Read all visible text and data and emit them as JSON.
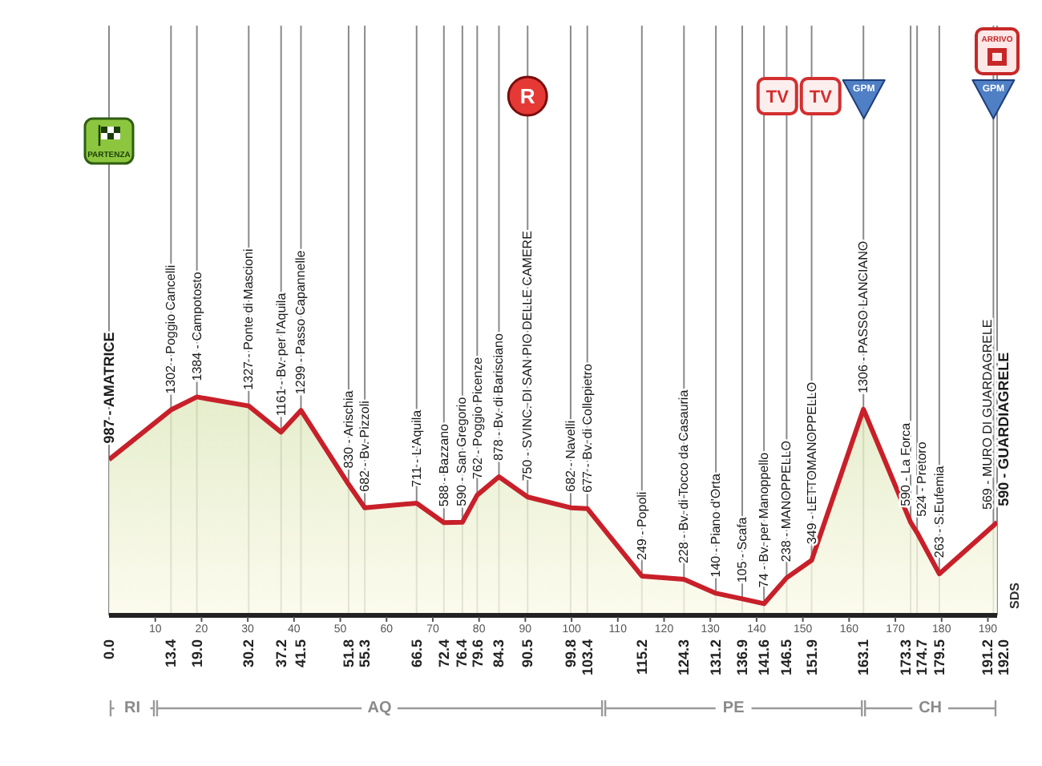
{
  "chart_data": {
    "type": "area",
    "x": [
      0,
      13.4,
      19,
      30.2,
      37.2,
      41.5,
      51.8,
      55.3,
      66.5,
      72.4,
      76.4,
      79.6,
      84.3,
      90.5,
      99.8,
      103.4,
      115.2,
      124.3,
      131.2,
      136.9,
      141.6,
      146.5,
      151.9,
      163.1,
      173.3,
      174.7,
      179.5,
      191.2,
      192
    ],
    "series": [
      {
        "color": "#c8202a",
        "values": [
          987,
          1302,
          1384,
          1327,
          1161,
          1299,
          830,
          682,
          711,
          588,
          590,
          762,
          878,
          750,
          682,
          677,
          249,
          228,
          140,
          105,
          74,
          238,
          349,
          1306,
          590,
          524,
          263,
          569,
          590
        ],
        "value_labels": [
          "987 - AMATRICE",
          "1302 - Poggio Cancelli",
          "1384 - Campotosto",
          "1327 - Ponte di Mascioni",
          "1161 - Bv. per l'Aquila",
          "1299 - Passo Capannelle",
          "830 - Arischia",
          "682 - Bv. Pizzoli",
          "711 - L'Aquila",
          "588 - Bazzano",
          "590 - San Gregorio",
          "762 - Poggio Picenze",
          "878 - Bv. di Barisciano",
          "750 - SVINC. DI SAN PIO DELLE CAMERE",
          "682 - Navelli",
          "677 - Bv. di Collepietro",
          "249 - Popoli",
          "228 - Bv. di Tocco da Casauria",
          "140 - Piano d'Orta",
          "105 - Scafa",
          "74 - Bv. per Manoppello",
          "238 - MANOPPELLO",
          "349 - LETTOMANOPPELLO",
          "1306 - PASSO LANCIANO",
          "590 - La Forca",
          "524 - Pretoro",
          "263 - S.Eufemia",
          "569 - MURO DI GUARDAGRELE",
          "590 - GUARDIAGRELE"
        ]
      }
    ],
    "xlim": [
      0,
      192
    ],
    "xticks": [
      {
        "value": 0,
        "label": "0.0"
      },
      13.4,
      {
        "value": 19,
        "label": "19.0"
      },
      30.2,
      37.2,
      41.5,
      51.8,
      55.3,
      66.5,
      72.4,
      76.4,
      79.6,
      84.3,
      90.5,
      99.8,
      103.4,
      115.2,
      124.3,
      131.2,
      136.9,
      141.6,
      146.5,
      151.9,
      163.1,
      173.3,
      174.7,
      179.5,
      191.2,
      {
        "value": 192,
        "label": "192.0"
      }
    ],
    "x2lim": [
      0,
      192
    ],
    "x2ticks": [
      10,
      20,
      30,
      40,
      50,
      60,
      70,
      80,
      90,
      100,
      110,
      120,
      130,
      140,
      150,
      160,
      170,
      180,
      190
    ],
    "grid": "x",
    "tick_labels": "x",
    "annotations": [
      "PARTENZA",
      "R",
      "TV",
      "TV",
      "GPM",
      "GPM",
      "ARRIVO",
      "SDS",
      "RI",
      "AQ",
      "PE",
      "CH"
    ]
  }
}
